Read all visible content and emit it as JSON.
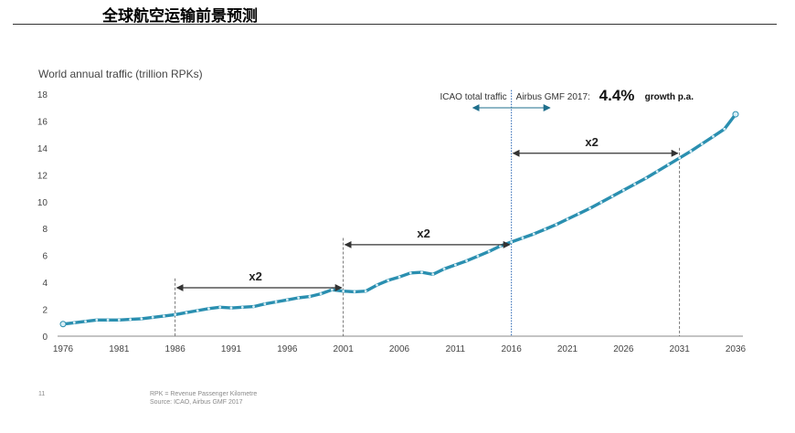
{
  "page": {
    "heading": "全球航空运输前景预测",
    "page_number": "11",
    "footnote_1": "RPK = Revenue Passenger Kilometre",
    "footnote_2": "Source: ICAO, Airbus GMF 2017"
  },
  "chart_data": {
    "type": "line",
    "title": "World annual traffic (trillion RPKs)",
    "ylim": [
      0,
      18
    ],
    "y_ticks": [
      0,
      2,
      4,
      6,
      8,
      10,
      12,
      14,
      16,
      18
    ],
    "xlim": [
      1976,
      2036
    ],
    "x_ticks": [
      1976,
      1981,
      1986,
      1991,
      1996,
      2001,
      2006,
      2011,
      2016,
      2021,
      2026,
      2031,
      2036
    ],
    "grid": false,
    "line_color": "#2a8fb0",
    "marker_color": "#d7eef5",
    "series": [
      {
        "x": [
          1976,
          1977,
          1978,
          1979,
          1980,
          1981,
          1982,
          1983,
          1984,
          1985,
          1986,
          1987,
          1988,
          1989,
          1990,
          1991,
          1992,
          1993,
          1994,
          1995,
          1996,
          1997,
          1998,
          1999,
          2000,
          2001,
          2002,
          2003,
          2004,
          2005,
          2006,
          2007,
          2008,
          2009,
          2010,
          2011,
          2012,
          2013,
          2014,
          2015,
          2016,
          2017,
          2018,
          2019,
          2020,
          2021,
          2022,
          2023,
          2024,
          2025,
          2026,
          2027,
          2028,
          2029,
          2030,
          2031,
          2032,
          2033,
          2034,
          2035,
          2036
        ],
        "y": [
          0.9,
          1.0,
          1.1,
          1.2,
          1.2,
          1.2,
          1.25,
          1.3,
          1.4,
          1.5,
          1.6,
          1.75,
          1.9,
          2.05,
          2.15,
          2.1,
          2.15,
          2.2,
          2.4,
          2.55,
          2.7,
          2.85,
          2.95,
          3.15,
          3.45,
          3.35,
          3.3,
          3.35,
          3.8,
          4.15,
          4.4,
          4.7,
          4.75,
          4.6,
          5.0,
          5.3,
          5.6,
          5.95,
          6.3,
          6.7,
          7.0,
          7.3,
          7.6,
          7.95,
          8.3,
          8.7,
          9.1,
          9.5,
          9.95,
          10.4,
          10.85,
          11.3,
          11.75,
          12.25,
          12.75,
          13.25,
          13.75,
          14.3,
          14.85,
          15.4,
          16.5
        ]
      }
    ],
    "annotations": {
      "icao_label": "ICAO total traffic",
      "airbus_label": "Airbus GMF 2017:",
      "growth_value": "4.4%",
      "growth_text": "growth p.a.",
      "split_year": 2016,
      "doublings": [
        {
          "label": "x2",
          "from": 1986,
          "to": 2001,
          "level": 3.6
        },
        {
          "label": "x2",
          "from": 2001,
          "to": 2016,
          "level": 6.8
        },
        {
          "label": "x2",
          "from": 2016,
          "to": 2031,
          "level": 13.6
        }
      ]
    }
  }
}
